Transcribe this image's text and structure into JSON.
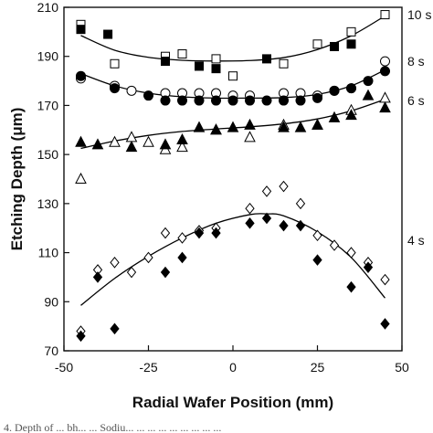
{
  "chart_data": {
    "type": "scatter",
    "title": "",
    "xlabel": "Radial Wafer Position (mm)",
    "ylabel": "Etching Depth (μm)",
    "xlim": [
      -50,
      50
    ],
    "ylim": [
      70,
      210
    ],
    "xticks": [
      -50,
      -25,
      0,
      25,
      50
    ],
    "yticks": [
      70,
      90,
      110,
      130,
      150,
      170,
      190,
      210
    ],
    "grid": false,
    "legend": "right-side labels",
    "caption": "4. Depth of ... bh... ... Sodiu... ... ... ... ... ... ... ... ...",
    "series": [
      {
        "name": "10 s",
        "open_marker": "square",
        "filled_marker": "square",
        "open": {
          "x": [
            -45,
            -35,
            -20,
            -15,
            -5,
            0,
            15,
            25,
            35,
            45
          ],
          "y": [
            203,
            187,
            190,
            191,
            189,
            182,
            187,
            195,
            200,
            207
          ]
        },
        "filled": {
          "x": [
            -45,
            -37,
            -20,
            -10,
            -5,
            10,
            30,
            35
          ],
          "y": [
            201,
            199,
            188,
            186,
            185,
            189,
            194,
            195
          ]
        },
        "fit": {
          "x": [
            -45,
            -35,
            -25,
            -15,
            -5,
            5,
            15,
            25,
            35,
            45
          ],
          "y": [
            198.5,
            192.5,
            189.6,
            188.4,
            188.1,
            188.3,
            189.5,
            192.8,
            198.4,
            206.5
          ]
        }
      },
      {
        "name": "8 s",
        "open_marker": "circle",
        "filled_marker": "circle",
        "open": {
          "x": [
            -45,
            -35,
            -30,
            -20,
            -15,
            -10,
            -5,
            0,
            5,
            15,
            20,
            25,
            30,
            35,
            45
          ],
          "y": [
            181,
            178,
            176,
            175,
            175,
            175,
            175,
            174,
            174,
            175,
            175,
            174,
            176,
            177,
            188
          ]
        },
        "filled": {
          "x": [
            -45,
            -35,
            -25,
            -20,
            -15,
            -10,
            -5,
            0,
            5,
            10,
            15,
            20,
            25,
            30,
            35,
            40,
            45
          ],
          "y": [
            182,
            177,
            174,
            172,
            172,
            172,
            172,
            172,
            172,
            172,
            172,
            172,
            173,
            176,
            177,
            180,
            184
          ]
        },
        "fit": {
          "x": [
            -45,
            -35,
            -25,
            -15,
            -5,
            5,
            15,
            25,
            35,
            45
          ],
          "y": [
            183,
            178,
            175,
            173.5,
            173,
            173,
            173.2,
            174.5,
            178,
            184.5
          ]
        }
      },
      {
        "name": "6 s",
        "open_marker": "triangle",
        "filled_marker": "triangle",
        "open": {
          "x": [
            -45,
            -35,
            -30,
            -25,
            -20,
            -15,
            -5,
            5,
            15,
            25,
            35,
            45
          ],
          "y": [
            140,
            155,
            157,
            155,
            152,
            153,
            160,
            157,
            162,
            162,
            168,
            173
          ]
        },
        "filled": {
          "x": [
            -45,
            -40,
            -30,
            -20,
            -15,
            -10,
            -5,
            0,
            5,
            15,
            20,
            25,
            30,
            35,
            40,
            45
          ],
          "y": [
            155,
            154,
            153,
            154,
            156,
            161,
            160,
            161,
            162,
            161,
            161,
            162,
            165,
            166,
            174,
            169
          ]
        },
        "fit": {
          "x": [
            -45,
            -35,
            -25,
            -15,
            -5,
            5,
            15,
            25,
            35,
            45
          ],
          "y": [
            152.5,
            155.5,
            157.8,
            159.4,
            160.4,
            161.3,
            162.5,
            164.5,
            167.8,
            172.5
          ]
        }
      },
      {
        "name": "4 s",
        "open_marker": "diamond",
        "filled_marker": "diamond",
        "open": {
          "x": [
            -45,
            -40,
            -35,
            -30,
            -25,
            -20,
            -15,
            -10,
            -5,
            5,
            10,
            15,
            20,
            25,
            30,
            35,
            40,
            45
          ],
          "y": [
            78,
            103,
            106,
            102,
            108,
            118,
            116,
            119,
            120,
            128,
            135,
            137,
            130,
            117,
            113,
            110,
            106,
            99
          ]
        },
        "filled": {
          "x": [
            -45,
            -40,
            -35,
            -20,
            -15,
            -10,
            -5,
            5,
            10,
            15,
            20,
            25,
            35,
            40,
            45
          ],
          "y": [
            76,
            100,
            79,
            102,
            108,
            118,
            118,
            122,
            124,
            121,
            121,
            107,
            96,
            104,
            81
          ]
        },
        "fit": {
          "x": [
            -45,
            -35,
            -25,
            -15,
            -5,
            5,
            10,
            15,
            25,
            35,
            45
          ],
          "y": [
            88.5,
            99.5,
            108.5,
            116,
            122,
            125.5,
            125.8,
            125,
            118.5,
            108,
            91.5
          ]
        }
      }
    ]
  }
}
